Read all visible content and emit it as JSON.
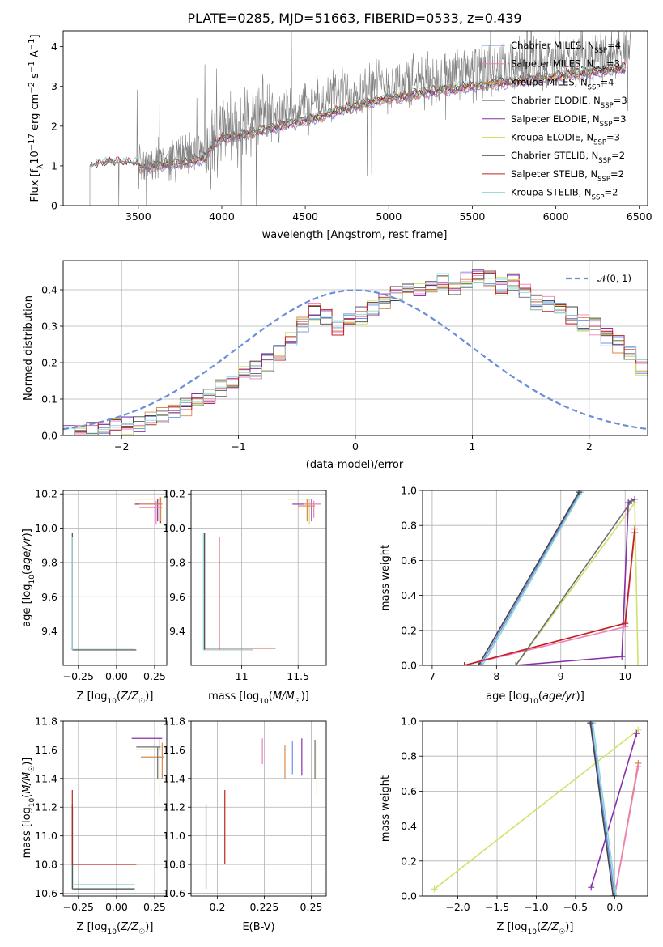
{
  "figure_title": "PLATE=0285, MJD=51663, FIBERID=0533, z=0.439",
  "colors": {
    "Chabrier MILES": "#6f8ee8",
    "Salpeter MILES": "#f07fc0",
    "Kroupa MILES": "#d98a4a",
    "Chabrier ELODIE": "#6e6e6e",
    "Salpeter ELODIE": "#8a2da8",
    "Kroupa ELODIE": "#cfe36a",
    "Chabrier STELIB": "#444444",
    "Salpeter STELIB": "#c0211d",
    "Kroupa STELIB": "#8fd6d6",
    "data": "#808080",
    "normal": "#6a8fd8"
  },
  "chart_data": [
    {
      "panel": "spectrum",
      "type": "line",
      "title": "PLATE=0285, MJD=51663, FIBERID=0533, z=0.439",
      "xlabel": "wavelength [Angstrom, rest frame]",
      "ylabel": "Flux [f_λ 10^-17 erg cm^-2 s^-1 A^-1]",
      "xlim": [
        3050,
        6550
      ],
      "ylim": [
        0,
        4.4
      ],
      "xticks": [
        3500,
        4000,
        4500,
        5000,
        5500,
        6000,
        6500
      ],
      "yticks": [
        0,
        1,
        2,
        3,
        4
      ],
      "grid": false,
      "legend_position": "top-right",
      "legend": [
        {
          "name": "Chabrier MILES",
          "label": "Chabrier MILES, N",
          "sub": "SSP",
          "suffix": "=4"
        },
        {
          "name": "Salpeter MILES",
          "label": "Salpeter MILES, N",
          "sub": "SSP",
          "suffix": "=3"
        },
        {
          "name": "Kroupa MILES",
          "label": "Kroupa MILES, N",
          "sub": "SSP",
          "suffix": "=4"
        },
        {
          "name": "Chabrier ELODIE",
          "label": "Chabrier ELODIE, N",
          "sub": "SSP",
          "suffix": "=3"
        },
        {
          "name": "Salpeter ELODIE",
          "label": "Salpeter ELODIE, N",
          "sub": "SSP",
          "suffix": "=3"
        },
        {
          "name": "Kroupa ELODIE",
          "label": "Kroupa ELODIE, N",
          "sub": "SSP",
          "suffix": "=3"
        },
        {
          "name": "Chabrier STELIB",
          "label": "Chabrier STELIB, N",
          "sub": "SSP",
          "suffix": "=2"
        },
        {
          "name": "Salpeter STELIB",
          "label": "Salpeter STELIB, N",
          "sub": "SSP",
          "suffix": "=2"
        },
        {
          "name": "Kroupa STELIB",
          "label": "Kroupa STELIB, N",
          "sub": "SSP",
          "suffix": "=2"
        }
      ],
      "data_continuum": {
        "x": [
          3210,
          3260,
          3300,
          3400,
          3500,
          3600,
          3700,
          3800,
          3900,
          3950,
          4000,
          4100,
          4200,
          4300,
          4400,
          4500,
          4600,
          4700,
          4800,
          4900,
          5000,
          5100,
          5200,
          5300,
          5400,
          5500,
          5600,
          5700,
          5800,
          5900,
          6000,
          6100,
          6200,
          6300,
          6400,
          6450
        ],
        "y": [
          1.0,
          1.05,
          1.1,
          1.1,
          1.05,
          1.1,
          1.2,
          1.3,
          1.45,
          1.7,
          1.9,
          2.0,
          2.15,
          2.25,
          2.35,
          2.5,
          2.65,
          2.8,
          2.9,
          3.0,
          3.05,
          3.1,
          3.15,
          3.2,
          3.3,
          3.35,
          3.4,
          3.45,
          3.55,
          3.6,
          3.65,
          3.7,
          3.75,
          3.8,
          3.85,
          3.9
        ]
      },
      "model_continuum": {
        "x": [
          3500,
          3600,
          3700,
          3800,
          3900,
          3950,
          4000,
          4100,
          4200,
          4300,
          4400,
          4500,
          4600,
          4700,
          4800,
          4900,
          5000,
          5100,
          5200,
          5300,
          5400,
          5500,
          5600,
          5700,
          5800,
          5900,
          6000,
          6100,
          6200,
          6300,
          6400
        ],
        "y": [
          0.95,
          1.0,
          1.05,
          1.1,
          1.2,
          1.55,
          1.7,
          1.75,
          1.85,
          1.95,
          2.05,
          2.15,
          2.25,
          2.4,
          2.5,
          2.6,
          2.7,
          2.75,
          2.85,
          2.9,
          2.95,
          3.0,
          3.05,
          3.1,
          3.15,
          3.2,
          3.25,
          3.3,
          3.35,
          3.4,
          3.45
        ]
      }
    },
    {
      "panel": "residuals",
      "type": "line",
      "xlabel": "(data-model)/error",
      "ylabel": "Normed distribution",
      "xlim": [
        -2.5,
        2.5
      ],
      "ylim": [
        0,
        0.48
      ],
      "xticks": [
        -2,
        -1,
        0,
        1,
        2
      ],
      "yticks": [
        0.0,
        0.1,
        0.2,
        0.3,
        0.4
      ],
      "grid": true,
      "legend_position": "top-right",
      "legend_label": "𝒩(0, 1)",
      "histogram_edges_start": -2.5,
      "histogram_bin_width": 0.1,
      "histogram_shape": [
        0.01,
        0.012,
        0.015,
        0.018,
        0.022,
        0.027,
        0.034,
        0.042,
        0.052,
        0.064,
        0.077,
        0.093,
        0.11,
        0.13,
        0.15,
        0.165,
        0.18,
        0.2,
        0.23,
        0.26,
        0.3,
        0.34,
        0.33,
        0.3,
        0.31,
        0.33,
        0.35,
        0.37,
        0.39,
        0.41,
        0.4,
        0.41,
        0.42,
        0.41,
        0.43,
        0.44,
        0.43,
        0.41,
        0.42,
        0.4,
        0.37,
        0.36,
        0.35,
        0.33,
        0.31,
        0.3,
        0.27,
        0.25,
        0.22,
        0.19,
        0.18,
        0.15,
        0.13,
        0.12,
        0.1,
        0.09,
        0.075,
        0.065,
        0.052,
        0.044,
        0.036,
        0.03,
        0.025,
        0.02,
        0.016,
        0.013,
        0.011,
        0.009,
        0.008,
        0.007
      ]
    },
    {
      "panel": "Z-vs-age",
      "type": "scatter",
      "xlabel": "Z [log10(Z/Z☉)]",
      "ylabel": "age  [log10(age/yr)]",
      "xlim": [
        -0.35,
        0.33
      ],
      "ylim": [
        9.2,
        10.22
      ],
      "xticks": [
        -0.25,
        0.0,
        0.25
      ],
      "yticks": [
        9.4,
        9.6,
        9.8,
        10.0,
        10.2
      ],
      "grid": true
    },
    {
      "panel": "mass-vs-age",
      "type": "scatter",
      "xlabel": "mass [log10(M/M☉)]",
      "ylabel": "",
      "xlim": [
        10.55,
        11.75
      ],
      "ylim": [
        9.2,
        10.22
      ],
      "xticks": [
        11.0,
        11.5
      ],
      "yticks": [
        9.4,
        9.6,
        9.8,
        10.0,
        10.2
      ],
      "grid": true
    },
    {
      "panel": "age-vs-massweight",
      "type": "line",
      "xlabel": "age  [log10(age/yr)]",
      "ylabel": "mass weight",
      "xlim": [
        6.85,
        10.35
      ],
      "ylim": [
        0,
        1.0
      ],
      "xticks": [
        7,
        8,
        9,
        10
      ],
      "yticks": [
        0.0,
        0.2,
        0.4,
        0.6,
        0.8,
        1.0
      ],
      "grid": true,
      "series": [
        {
          "name": "Chabrier MILES",
          "x": [
            7.75,
            9.3
          ],
          "y": [
            0.0,
            0.99
          ]
        },
        {
          "name": "Kroupa STELIB",
          "x": [
            7.78,
            9.32
          ],
          "y": [
            0.0,
            0.99
          ]
        },
        {
          "name": "Chabrier STELIB",
          "x": [
            7.72,
            9.28
          ],
          "y": [
            0.0,
            0.99
          ]
        },
        {
          "name": "Kroupa ELODIE",
          "x": [
            8.3,
            10.15,
            10.2
          ],
          "y": [
            0.0,
            0.93,
            0.0
          ]
        },
        {
          "name": "Salpeter ELODIE",
          "x": [
            8.3,
            9.95,
            10.05,
            10.15
          ],
          "y": [
            0.0,
            0.05,
            0.93,
            0.95
          ]
        },
        {
          "name": "Kroupa MILES",
          "x": [
            7.5,
            10.0,
            10.15
          ],
          "y": [
            0.0,
            0.24,
            0.76
          ]
        },
        {
          "name": "Salpeter MILES",
          "x": [
            7.5,
            10.0,
            10.15
          ],
          "y": [
            0.0,
            0.22,
            0.76
          ]
        },
        {
          "name": "Salpeter STELIB",
          "x": [
            7.5,
            10.0,
            10.15
          ],
          "y": [
            0.0,
            0.24,
            0.78
          ]
        },
        {
          "name": "Chabrier ELODIE",
          "x": [
            8.3,
            10.1
          ],
          "y": [
            0.0,
            0.94
          ]
        }
      ]
    },
    {
      "panel": "Z-vs-mass",
      "type": "scatter",
      "xlabel": "Z [log10(Z/Z☉)]",
      "ylabel": "mass [log10(M/M☉)]",
      "xlim": [
        -0.35,
        0.33
      ],
      "ylim": [
        10.58,
        11.8
      ],
      "xticks": [
        -0.25,
        0.0,
        0.25
      ],
      "yticks": [
        10.6,
        10.8,
        11.0,
        11.2,
        11.4,
        11.6,
        11.8
      ],
      "grid": true
    },
    {
      "panel": "EBV-vs-mass",
      "type": "scatter",
      "xlabel": "E(B-V)",
      "ylabel": "",
      "xlim": [
        0.186,
        0.258
      ],
      "ylim": [
        10.58,
        11.8
      ],
      "xticks": [
        0.2,
        0.225,
        0.25
      ],
      "yticks": [
        10.6,
        10.8,
        11.0,
        11.2,
        11.4,
        11.6,
        11.8
      ],
      "grid": true
    },
    {
      "panel": "Z-vs-massweight",
      "type": "line",
      "xlabel": "Z [log10(Z/Z☉)]",
      "ylabel": "mass weight",
      "xlim": [
        -2.45,
        0.42
      ],
      "ylim": [
        0,
        1.0
      ],
      "xticks": [
        -2.0,
        -1.5,
        -1.0,
        -0.5,
        0.0
      ],
      "yticks": [
        0.0,
        0.2,
        0.4,
        0.6,
        0.8,
        1.0
      ],
      "grid": true,
      "series": [
        {
          "name": "Kroupa ELODIE",
          "x": [
            -2.3,
            0.3
          ],
          "y": [
            0.04,
            0.95
          ]
        },
        {
          "name": "Salpeter ELODIE",
          "x": [
            -0.3,
            0.28
          ],
          "y": [
            0.05,
            0.93
          ]
        },
        {
          "name": "Kroupa MILES",
          "x": [
            0.0,
            0.3
          ],
          "y": [
            0.0,
            0.76
          ]
        },
        {
          "name": "Salpeter MILES",
          "x": [
            0.0,
            0.3
          ],
          "y": [
            0.0,
            0.74
          ]
        },
        {
          "name": "Chabrier MILES",
          "x": [
            -0.3,
            0.0
          ],
          "y": [
            0.99,
            0.0
          ]
        },
        {
          "name": "Kroupa STELIB",
          "x": [
            -0.28,
            0.02
          ],
          "y": [
            0.99,
            0.0
          ]
        },
        {
          "name": "Chabrier STELIB",
          "x": [
            -0.31,
            -0.02
          ],
          "y": [
            0.99,
            0.0
          ]
        }
      ]
    }
  ]
}
